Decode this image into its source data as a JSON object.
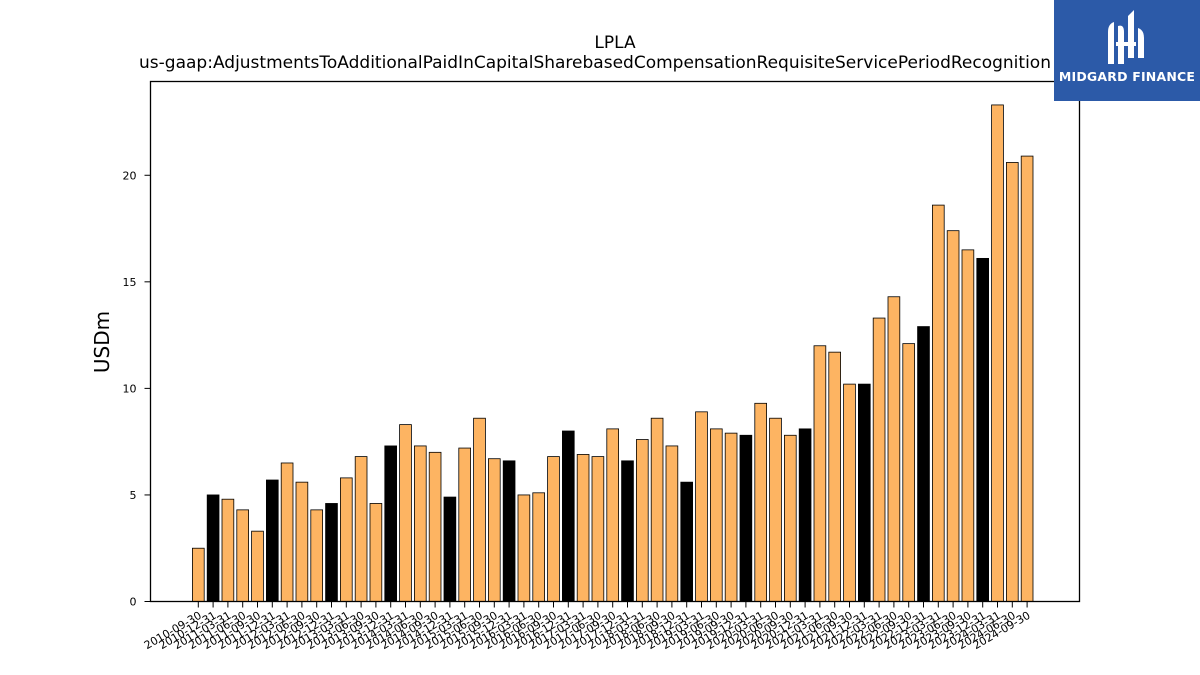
{
  "chart_data": {
    "type": "bar",
    "title": "LPLA",
    "subtitle": "us-gaap:AdjustmentsToAdditionalPaidInCapitalSharebasedCompensationRequisiteServicePeriodRecognition",
    "xlabel": "",
    "ylabel": "USDm",
    "ylim": [
      0,
      24.4
    ],
    "yticks": [
      0,
      5,
      10,
      15,
      20
    ],
    "grid": false,
    "colors": {
      "quarter": "#fdb462",
      "annual": "#000000",
      "edge": "#000000"
    },
    "categories": [
      "2010-09-30",
      "2010-12-31",
      "2011-03-31",
      "2011-06-30",
      "2011-09-30",
      "2011-12-31",
      "2012-03-31",
      "2012-06-30",
      "2012-09-30",
      "2012-12-31",
      "2013-03-31",
      "2013-06-30",
      "2013-09-30",
      "2013-12-31",
      "2014-03-31",
      "2014-06-30",
      "2014-09-30",
      "2014-12-31",
      "2015-03-31",
      "2015-06-30",
      "2015-09-30",
      "2015-12-31",
      "2016-03-31",
      "2016-06-30",
      "2016-09-30",
      "2016-12-31",
      "2017-03-31",
      "2017-06-30",
      "2017-09-30",
      "2017-12-31",
      "2018-03-31",
      "2018-06-30",
      "2018-09-30",
      "2018-12-31",
      "2019-03-31",
      "2019-06-30",
      "2019-09-30",
      "2019-12-31",
      "2020-03-31",
      "2020-06-30",
      "2020-09-30",
      "2020-12-31",
      "2021-03-31",
      "2021-06-30",
      "2021-09-30",
      "2021-12-31",
      "2022-03-31",
      "2022-06-30",
      "2022-09-30",
      "2022-12-31",
      "2023-03-31",
      "2023-06-30",
      "2023-09-30",
      "2023-12-31",
      "2024-03-31",
      "2024-06-30",
      "2024-09-30"
    ],
    "values": [
      2.5,
      5.0,
      4.8,
      4.3,
      3.3,
      5.7,
      6.5,
      5.6,
      4.3,
      4.6,
      5.8,
      6.8,
      4.6,
      7.3,
      8.3,
      7.3,
      7.0,
      4.9,
      7.2,
      8.6,
      6.7,
      6.6,
      5.0,
      5.1,
      6.8,
      8.0,
      6.9,
      6.8,
      8.1,
      6.6,
      7.6,
      8.6,
      7.3,
      5.6,
      8.9,
      8.1,
      7.9,
      7.8,
      9.3,
      8.6,
      7.8,
      8.1,
      12.0,
      11.7,
      10.2,
      10.2,
      13.3,
      14.3,
      12.1,
      12.9,
      18.6,
      17.4,
      16.5,
      16.1,
      23.3,
      20.6,
      20.9
    ],
    "annual": [
      false,
      true,
      false,
      false,
      false,
      true,
      false,
      false,
      false,
      true,
      false,
      false,
      false,
      true,
      false,
      false,
      false,
      true,
      false,
      false,
      false,
      true,
      false,
      false,
      false,
      true,
      false,
      false,
      false,
      true,
      false,
      false,
      false,
      true,
      false,
      false,
      false,
      true,
      false,
      false,
      false,
      true,
      false,
      false,
      false,
      true,
      false,
      false,
      false,
      true,
      false,
      false,
      false,
      true,
      false,
      false,
      false
    ]
  },
  "logo": {
    "text": "MIDGARD FINANCE"
  }
}
